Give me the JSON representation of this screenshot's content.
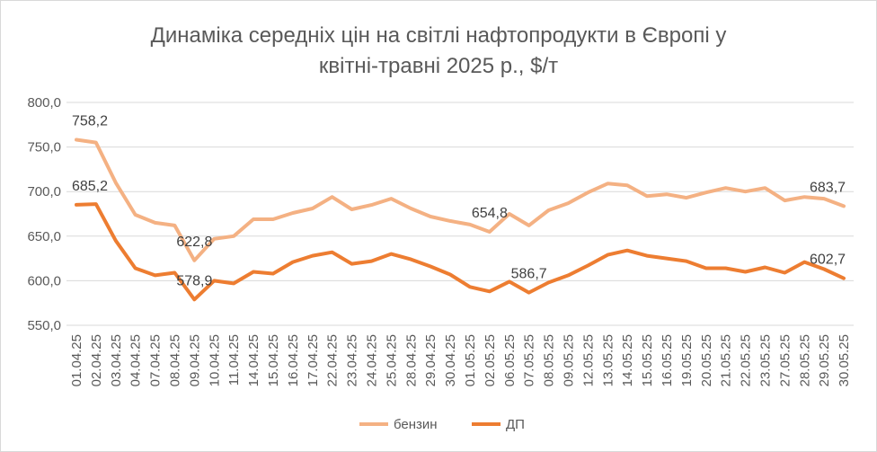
{
  "chart_data": {
    "type": "line",
    "title_lines": [
      "Динаміка середніх цін на світлі нафтопродукти в Європі у",
      "квітні-травні 2025 р., $/т"
    ],
    "categories": [
      "01.04.25",
      "02.04.25",
      "03.04.25",
      "04.04.25",
      "07.04.25",
      "08.04.25",
      "09.04.25",
      "10.04.25",
      "11.04.25",
      "14.04.25",
      "15.04.25",
      "16.04.25",
      "17.04.25",
      "22.04.25",
      "23.04.25",
      "24.04.25",
      "25.04.25",
      "28.04.25",
      "29.04.25",
      "30.04.25",
      "01.05.25",
      "02.05.25",
      "06.05.25",
      "07.05.25",
      "08.05.25",
      "09.05.25",
      "12.05.25",
      "13.05.25",
      "14.05.25",
      "15.05.25",
      "16.05.25",
      "19.05.25",
      "20.05.25",
      "21.05.25",
      "22.05.25",
      "23.05.25",
      "27.05.25",
      "28.05.25",
      "29.05.25",
      "30.05.25"
    ],
    "ylim": [
      550,
      800
    ],
    "yticks": [
      "550,0",
      "600,0",
      "650,0",
      "700,0",
      "750,0",
      "800,0"
    ],
    "ytick_values": [
      550,
      600,
      650,
      700,
      750,
      800
    ],
    "grid": true,
    "legend_position": "bottom",
    "series": [
      {
        "name": "бензин",
        "color": "#f4b183",
        "values": [
          758.2,
          755,
          710,
          674,
          665,
          662,
          622.8,
          647,
          650,
          669,
          669,
          676,
          681,
          694,
          680,
          685,
          692,
          681,
          672,
          667,
          663,
          654.8,
          675,
          662,
          679,
          687,
          699,
          709,
          707,
          695,
          697,
          693,
          699,
          704,
          700,
          704,
          690,
          694,
          692,
          683.7
        ],
        "labels": [
          {
            "index": 0,
            "text": "758,2"
          },
          {
            "index": 6,
            "text": "622,8"
          },
          {
            "index": 21,
            "text": "654,8"
          },
          {
            "index": 39,
            "text": "683,7"
          }
        ]
      },
      {
        "name": "ДП",
        "color": "#ed7d31",
        "values": [
          685.2,
          686,
          645,
          614,
          606,
          609,
          578.9,
          600,
          597,
          610,
          608,
          621,
          628,
          632,
          619,
          622,
          630,
          624,
          616,
          607,
          593,
          588,
          599,
          586.7,
          598,
          606,
          617,
          629,
          634,
          628,
          625,
          622,
          614,
          614,
          610,
          615,
          609,
          621,
          613,
          602.7
        ],
        "labels": [
          {
            "index": 0,
            "text": "685,2"
          },
          {
            "index": 6,
            "text": "578,9"
          },
          {
            "index": 23,
            "text": "586,7"
          },
          {
            "index": 39,
            "text": "602,7"
          }
        ]
      }
    ]
  }
}
